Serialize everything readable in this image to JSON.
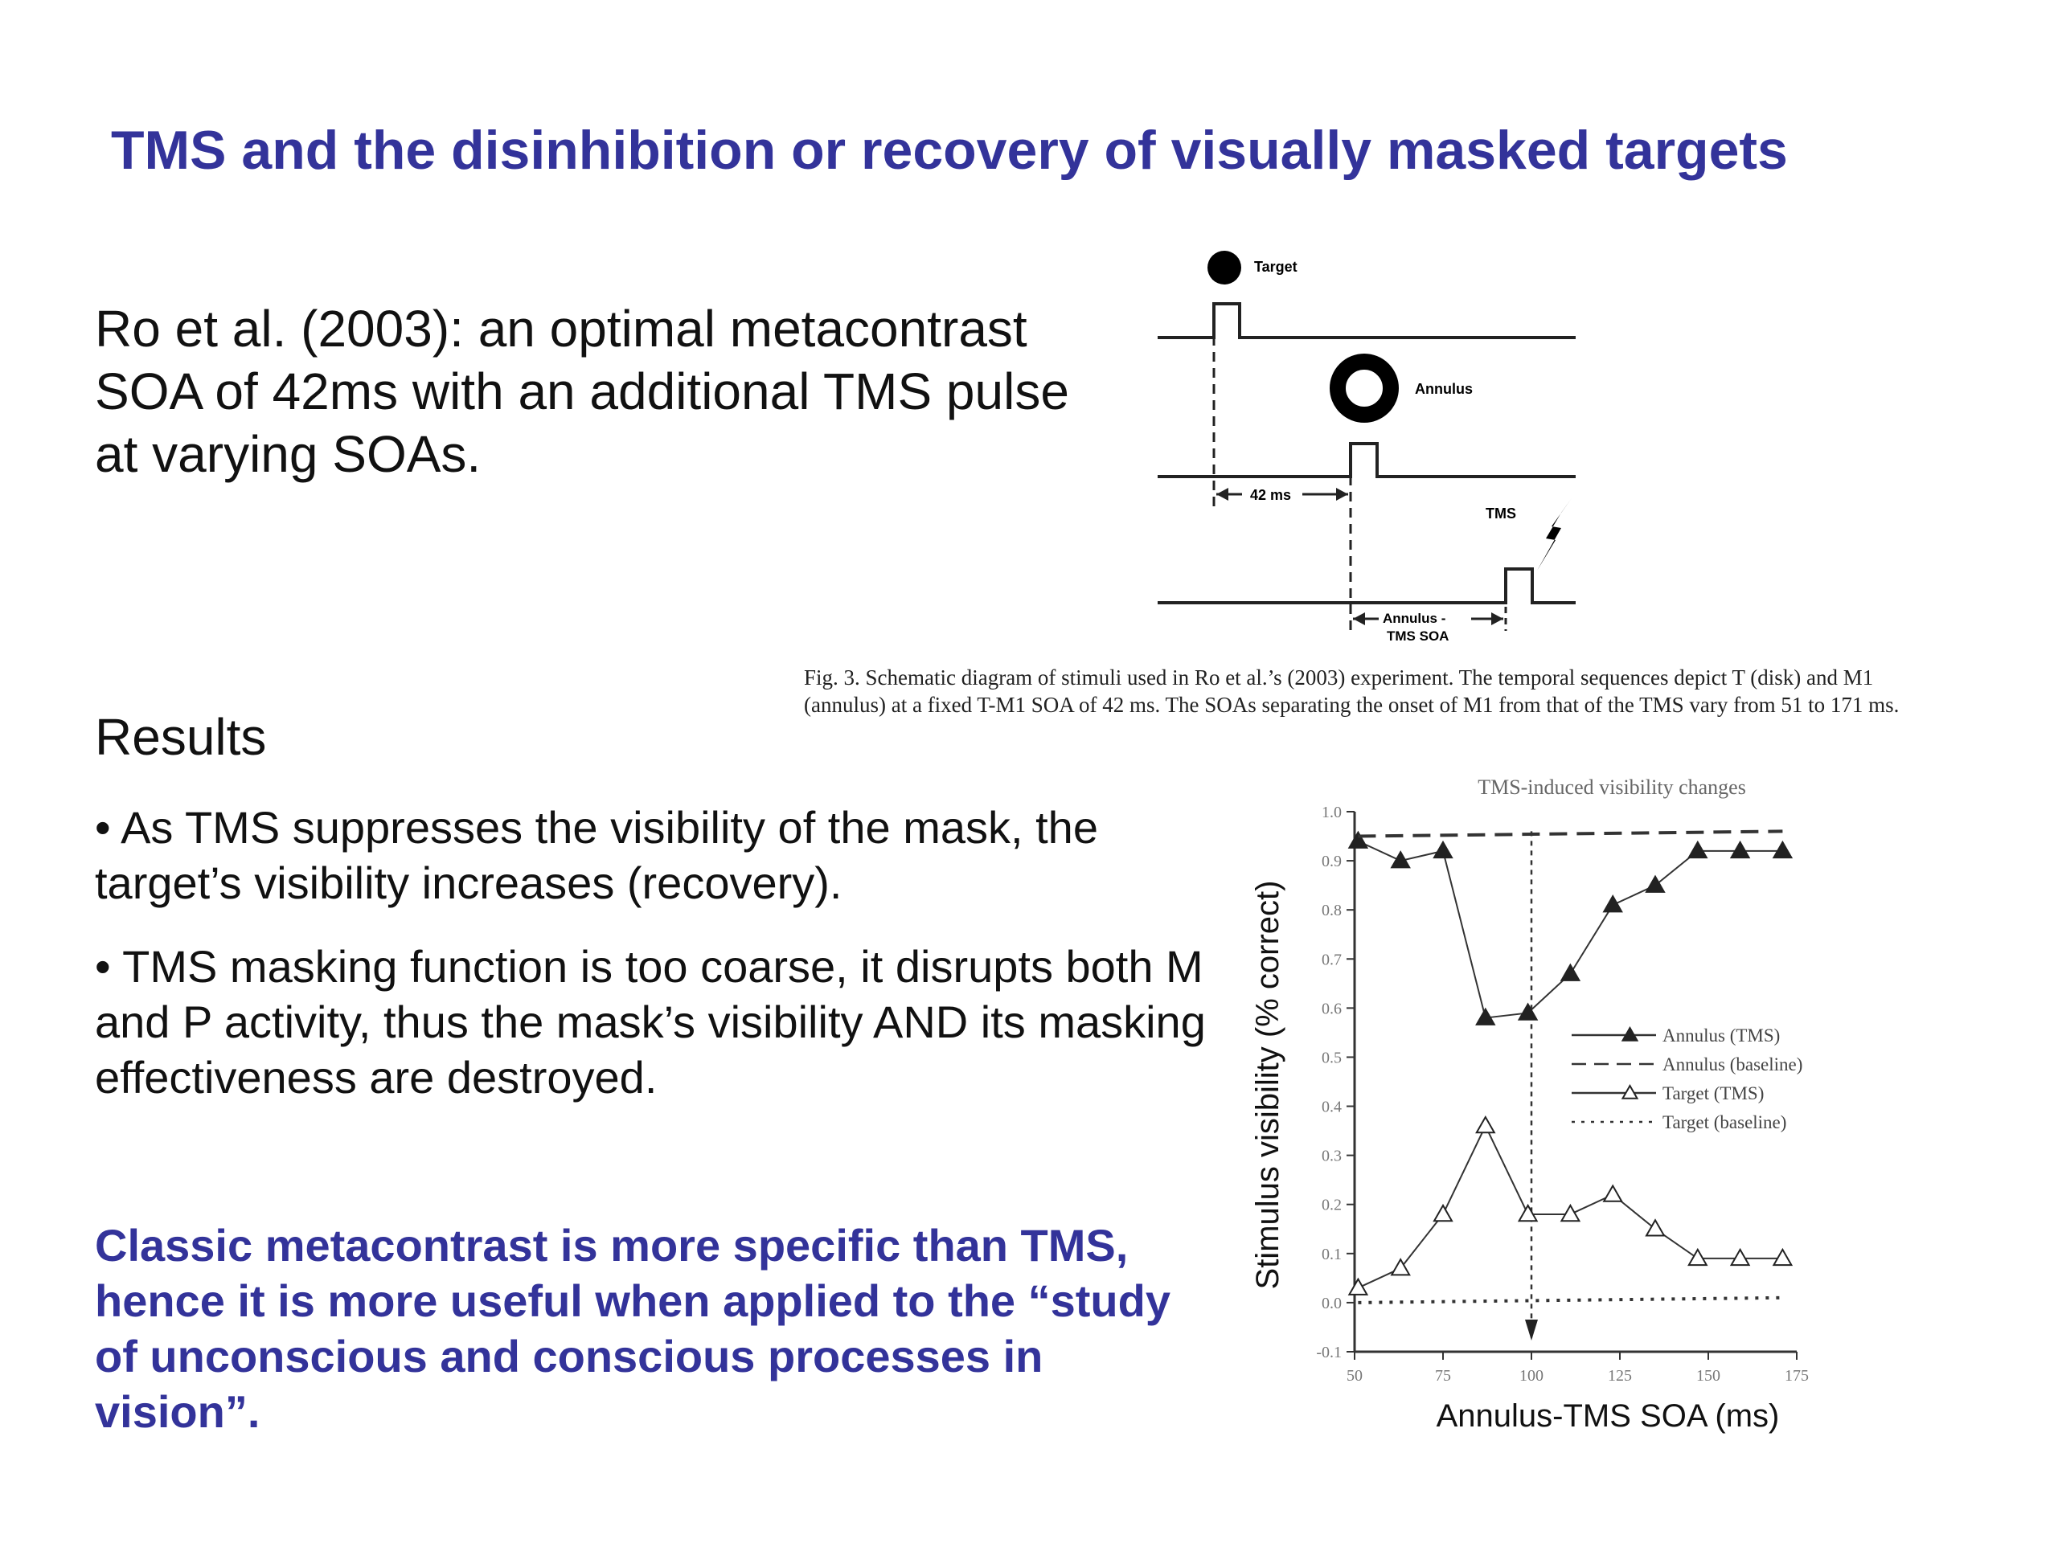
{
  "title": "TMS and the disinhibition or recovery of visually masked targets",
  "intro": "Ro et al. (2003): an optimal metacontrast SOA of 42ms with an additional TMS pulse at varying SOAs.",
  "results_heading": "Results",
  "bullets": [
    "• As TMS suppresses the visibility of the mask, the target’s visibility increases (recovery).",
    "• TMS masking function is too coarse, it disrupts both M and P activity, thus the mask’s visibility AND its masking effectiveness are destroyed."
  ],
  "conclusion": "Classic metacontrast is more specific than TMS, hence it is more useful when applied to the “study of unconscious and conscious processes in vision”.",
  "diagram": {
    "target_label": "Target",
    "annulus_label": "Annulus",
    "tms_label": "TMS",
    "soa_label": "42 ms",
    "annulus_tms_soa_label_1": "Annulus -",
    "annulus_tms_soa_label_2": "TMS SOA"
  },
  "caption": "Fig. 3.  Schematic diagram of stimuli used in Ro et al.’s (2003) experiment. The temporal sequences depict T (disk) and M1 (annulus) at a fixed T-M1 SOA of 42 ms. The SOAs separating the onset of M1 from that of the TMS vary from 51 to 171 ms.",
  "chart_data": {
    "type": "line",
    "title": "TMS-induced visibility changes",
    "xlabel": "Annulus-TMS SOA (ms)",
    "ylabel": "Stimulus visibility (% correct)",
    "xlim": [
      50,
      175
    ],
    "ylim": [
      -0.1,
      1.0
    ],
    "x_ticks": [
      50,
      75,
      100,
      125,
      150,
      175
    ],
    "y_ticks": [
      -0.1,
      0.0,
      0.1,
      0.2,
      0.3,
      0.4,
      0.5,
      0.6,
      0.7,
      0.8,
      0.9,
      1.0
    ],
    "y_tick_labels": [
      "-0.1",
      "0.0",
      "0.1",
      "0.2",
      "0.3",
      "0.4",
      "0.5",
      "0.6",
      "0.7",
      "0.8",
      "0.9",
      "1.0"
    ],
    "vertical_marker_x": 100,
    "legend_position": "right-middle",
    "series": [
      {
        "name": "Annulus (TMS)",
        "style": "solid-filled-triangle",
        "x": [
          51,
          63,
          75,
          87,
          99,
          111,
          123,
          135,
          147,
          159,
          171
        ],
        "y": [
          0.94,
          0.9,
          0.92,
          0.58,
          0.59,
          0.67,
          0.81,
          0.85,
          0.92,
          0.92,
          0.92
        ]
      },
      {
        "name": "Annulus (baseline)",
        "style": "dashed",
        "x": [
          51,
          171
        ],
        "y": [
          0.95,
          0.96
        ]
      },
      {
        "name": "Target (TMS)",
        "style": "solid-open-triangle",
        "x": [
          51,
          63,
          75,
          87,
          99,
          111,
          123,
          135,
          147,
          159,
          171
        ],
        "y": [
          0.03,
          0.07,
          0.18,
          0.36,
          0.18,
          0.18,
          0.22,
          0.15,
          0.09,
          0.09,
          0.09
        ]
      },
      {
        "name": "Target (baseline)",
        "style": "dotted",
        "x": [
          51,
          171
        ],
        "y": [
          0.0,
          0.01
        ]
      }
    ]
  }
}
